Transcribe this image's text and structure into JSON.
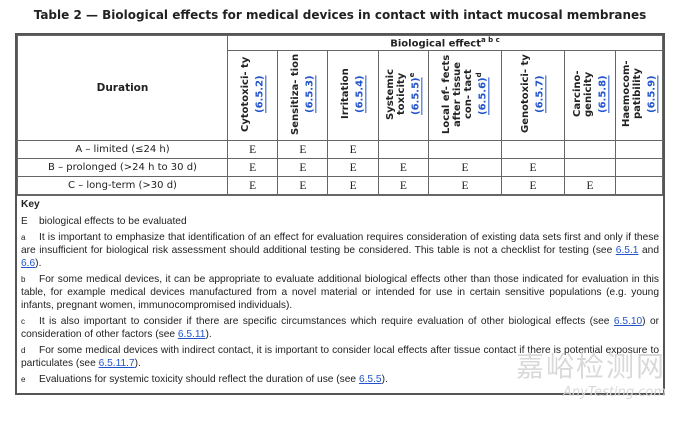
{
  "title": "Table 2 — Biological effects for medical devices in contact with intact mucosal membranes",
  "header": {
    "duration": "Duration",
    "group": "Biological effect",
    "group_sup": "a b c",
    "columns": [
      {
        "text": "Cytotoxici- ty ",
        "link": "(6.5.2)",
        "sup": ""
      },
      {
        "text": "Sensitiza- tion ",
        "link": "(6.5.3)",
        "sup": ""
      },
      {
        "text": "Irritation ",
        "link": "(6.5.4)",
        "sup": ""
      },
      {
        "text": "Systemic toxicity ",
        "link": "(6.5.5)",
        "sup": "e"
      },
      {
        "text": "Local ef- fects after tissue con- tact ",
        "link": "(6.5.6)",
        "sup": "d"
      },
      {
        "text": "Genotoxici- ty ",
        "link": "(6.5.7)",
        "sup": ""
      },
      {
        "text": "Carcino- genicity ",
        "link": "(6.5.8)",
        "sup": ""
      },
      {
        "text": "Haemocom- patibility ",
        "link": "(6.5.9)",
        "sup": ""
      }
    ]
  },
  "rows": [
    {
      "label": "A – limited (≤24 h)",
      "cells": [
        "E",
        "E",
        "E",
        "",
        "",
        "",
        "",
        ""
      ]
    },
    {
      "label": "B – prolonged (>24 h to 30 d)",
      "cells": [
        "E",
        "E",
        "E",
        "E",
        "E",
        "E",
        "",
        ""
      ]
    },
    {
      "label": "C – long-term (>30 d)",
      "cells": [
        "E",
        "E",
        "E",
        "E",
        "E",
        "E",
        "E",
        ""
      ]
    }
  ],
  "key": {
    "heading": "Key",
    "e_mark": "E",
    "e_text": "biological effects to be evaluated",
    "notes": [
      {
        "mark": "a",
        "parts": [
          {
            "t": "It is important to emphasize that identification of an effect for evaluation requires consideration of existing data sets first and only if these are insufficient for biological risk assessment should additional testing be considered. This table is not a checklist for testing (see "
          },
          {
            "l": "6.5.1"
          },
          {
            "t": " and "
          },
          {
            "l": "6.6"
          },
          {
            "t": ")."
          }
        ]
      },
      {
        "mark": "b",
        "parts": [
          {
            "t": "For some medical devices, it can be appropriate to evaluate additional biological effects other than those indicated for evaluation in this table, for example medical devices manufactured from a novel material or intended for use in certain sensitive populations (e.g. young infants, pregnant women, immunocompromised individuals)."
          }
        ]
      },
      {
        "mark": "c",
        "parts": [
          {
            "t": "It is also important to consider if there are specific circumstances which require evaluation of other biological effects (see "
          },
          {
            "l": "6.5.10"
          },
          {
            "t": ") or consideration of other factors (see "
          },
          {
            "l": "6.5.11"
          },
          {
            "t": ")."
          }
        ]
      },
      {
        "mark": "d",
        "parts": [
          {
            "t": "For some medical devices with indirect contact, it is important to consider local effects after tissue contact if there is potential exposure to particulates (see "
          },
          {
            "l": "6.5.11.7"
          },
          {
            "t": ")."
          }
        ]
      },
      {
        "mark": "e",
        "parts": [
          {
            "t": "Evaluations for systemic toxicity should reflect the duration of use (see "
          },
          {
            "l": "6.5.5"
          },
          {
            "t": ")."
          }
        ]
      }
    ]
  },
  "watermark": {
    "cn": "嘉峪检测网",
    "en": "AnyTesting.com"
  }
}
